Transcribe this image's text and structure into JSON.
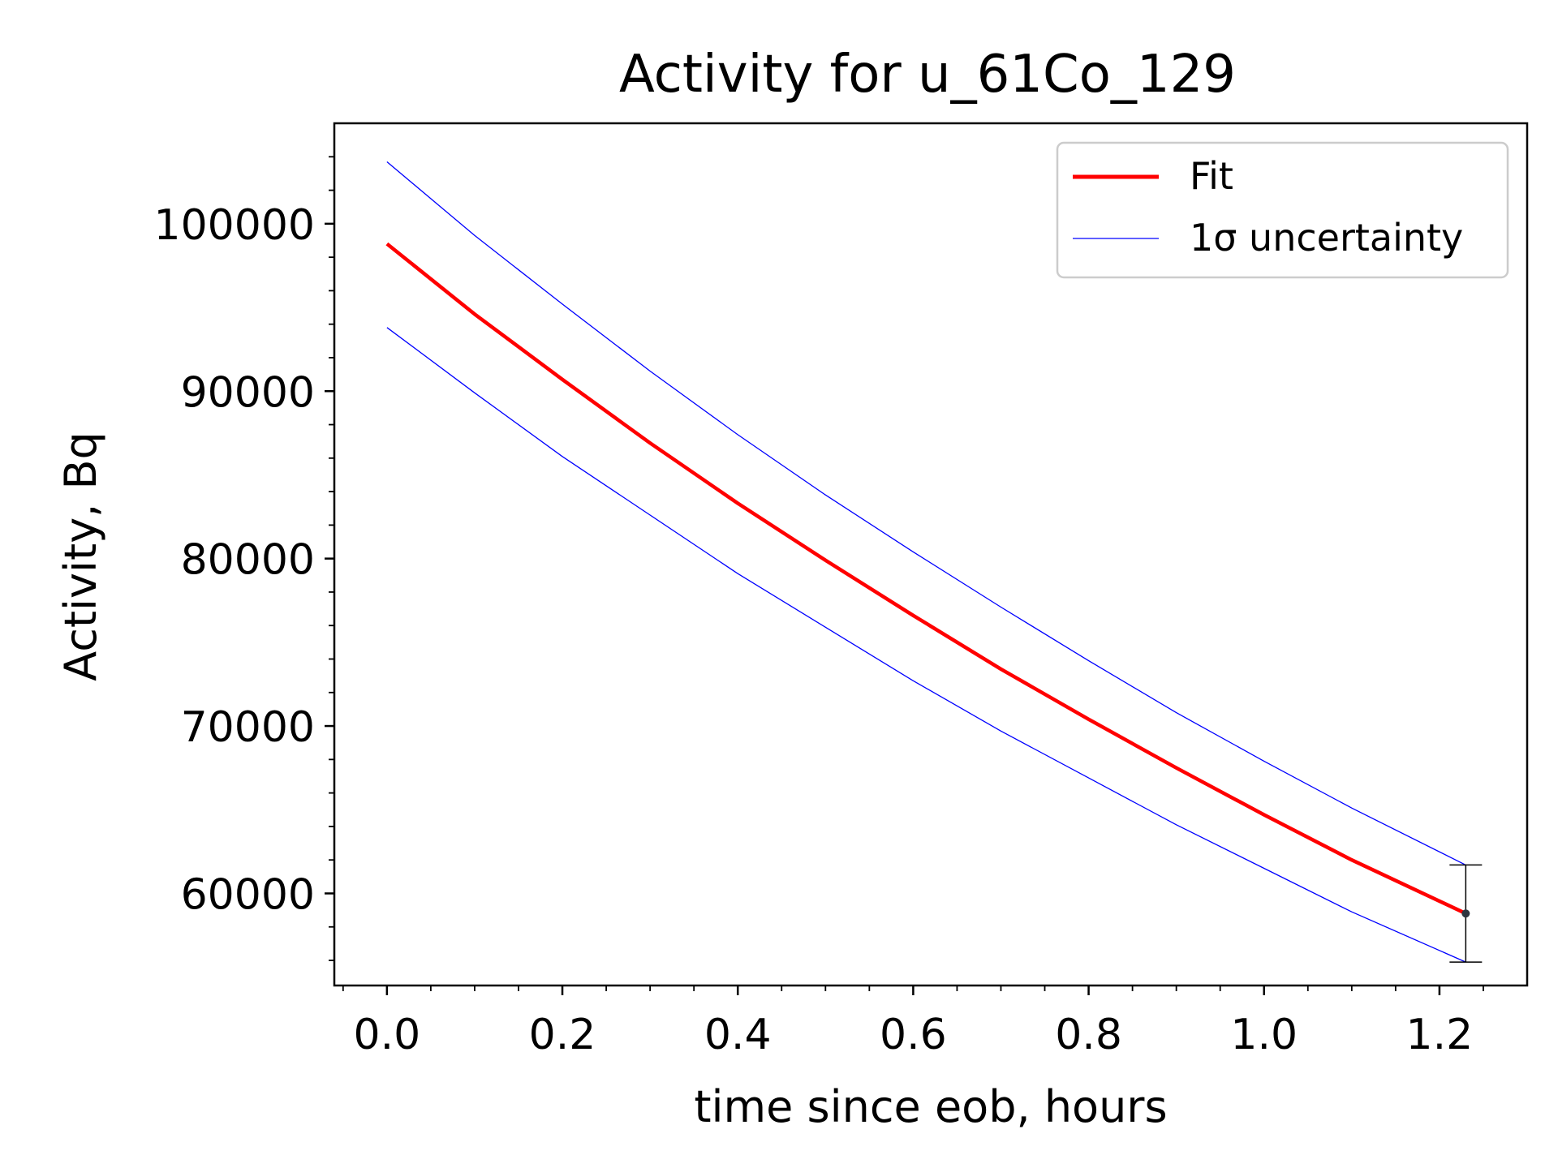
{
  "chart_data": {
    "type": "line",
    "title": "Activity for u_61Co_129",
    "xlabel": "time since eob, hours",
    "ylabel": "Activity, Bq",
    "xlim": [
      -0.06,
      1.3
    ],
    "ylim": [
      54500,
      106000
    ],
    "x_ticks": [
      0.0,
      0.2,
      0.4,
      0.6,
      0.8,
      1.0,
      1.2
    ],
    "x_tick_labels": [
      "0.0",
      "0.2",
      "0.4",
      "0.6",
      "0.8",
      "1.0",
      "1.2"
    ],
    "y_ticks": [
      60000,
      70000,
      80000,
      90000,
      100000
    ],
    "y_tick_labels": [
      "60000",
      "70000",
      "80000",
      "90000",
      "100000"
    ],
    "grid": false,
    "legend_position": "top-right",
    "legend_entries": [
      "Fit",
      "1σ uncertainty"
    ],
    "series": [
      {
        "name": "Fit",
        "color": "#ff0000",
        "x": [
          0.0,
          0.1,
          0.2,
          0.3,
          0.4,
          0.5,
          0.6,
          0.7,
          0.8,
          0.9,
          1.0,
          1.1,
          1.23
        ],
        "values": [
          98800,
          94600,
          90700,
          86900,
          83300,
          79900,
          76600,
          73400,
          70400,
          67500,
          64700,
          62000,
          58800
        ]
      },
      {
        "name": "1σ uncertainty",
        "color": "#0000ff",
        "x": [
          0.0,
          0.1,
          0.2,
          0.3,
          0.4,
          0.5,
          0.6,
          0.7,
          0.8,
          0.9,
          1.0,
          1.1,
          1.23
        ],
        "values": [
          103700,
          99300,
          95200,
          91200,
          87400,
          83800,
          80400,
          77100,
          73900,
          70800,
          67900,
          65100,
          61700
        ]
      },
      {
        "color": "#0000ff",
        "x": [
          0.0,
          0.1,
          0.2,
          0.3,
          0.4,
          0.5,
          0.6,
          0.7,
          0.8,
          0.9,
          1.0,
          1.1,
          1.23
        ],
        "values": [
          93800,
          89900,
          86100,
          82600,
          79100,
          75900,
          72700,
          69700,
          66900,
          64100,
          61500,
          58900,
          55900
        ]
      }
    ],
    "data_point": {
      "x": 1.23,
      "y": 58800,
      "error_low": 55900,
      "error_high": 61700,
      "color": "#2f3640"
    }
  }
}
